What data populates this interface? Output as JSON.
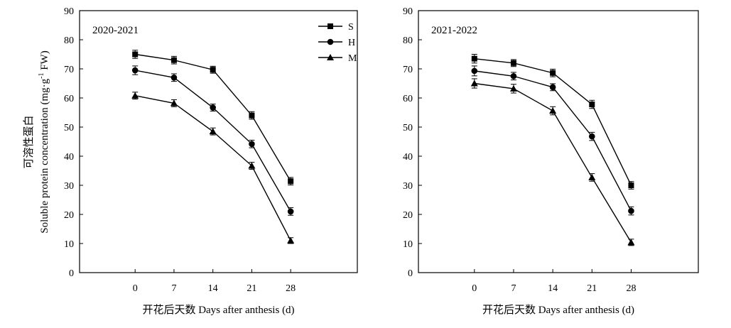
{
  "chart_data": [
    {
      "type": "line",
      "panel_label": "2020-2021",
      "xlabel": "开花后天数 Days after anthesis (d)",
      "ylabel_cn": "可溶性蛋白",
      "ylabel_en": "Soluble protein concentration (mg·g",
      "ylabel_sup": "-1",
      "ylabel_end": " FW)",
      "x": [
        0,
        7,
        14,
        21,
        28
      ],
      "xlim": [
        -10,
        40
      ],
      "ylim": [
        0,
        90
      ],
      "yticks": [
        0,
        10,
        20,
        30,
        40,
        50,
        60,
        70,
        80,
        90
      ],
      "legend_position": "top-right",
      "series": [
        {
          "name": "S",
          "marker": "square",
          "values": [
            75,
            73,
            69.7,
            54,
            31.4
          ],
          "errors": [
            1.4,
            1.3,
            1.2,
            1.3,
            1.3
          ]
        },
        {
          "name": "H",
          "marker": "circle",
          "values": [
            69.5,
            67,
            56.7,
            44.2,
            21
          ],
          "errors": [
            1.5,
            1.3,
            1.2,
            1.3,
            1.3
          ]
        },
        {
          "name": "M",
          "marker": "triangle",
          "values": [
            60.8,
            58.2,
            48.5,
            36.7,
            11
          ],
          "errors": [
            1.2,
            1.2,
            1.2,
            1.2,
            1.0
          ]
        }
      ]
    },
    {
      "type": "line",
      "panel_label": "2021-2022",
      "xlabel": "开花后天数 Days after anthesis (d)",
      "x": [
        0,
        7,
        14,
        21,
        28
      ],
      "xlim": [
        -10,
        40
      ],
      "ylim": [
        0,
        90
      ],
      "yticks": [
        0,
        10,
        20,
        30,
        40,
        50,
        60,
        70,
        80,
        90
      ],
      "series": [
        {
          "name": "S",
          "marker": "square",
          "values": [
            73.5,
            72,
            68.6,
            57.8,
            30
          ],
          "errors": [
            1.5,
            1.2,
            1.3,
            1.4,
            1.3
          ]
        },
        {
          "name": "H",
          "marker": "circle",
          "values": [
            69.3,
            67.5,
            63.7,
            46.8,
            21.2
          ],
          "errors": [
            1.7,
            1.3,
            1.2,
            1.4,
            1.4
          ]
        },
        {
          "name": "M",
          "marker": "triangle",
          "values": [
            65,
            63.2,
            55.6,
            32.7,
            10.4
          ],
          "errors": [
            1.6,
            1.5,
            1.4,
            1.3,
            1.1
          ]
        }
      ]
    }
  ]
}
